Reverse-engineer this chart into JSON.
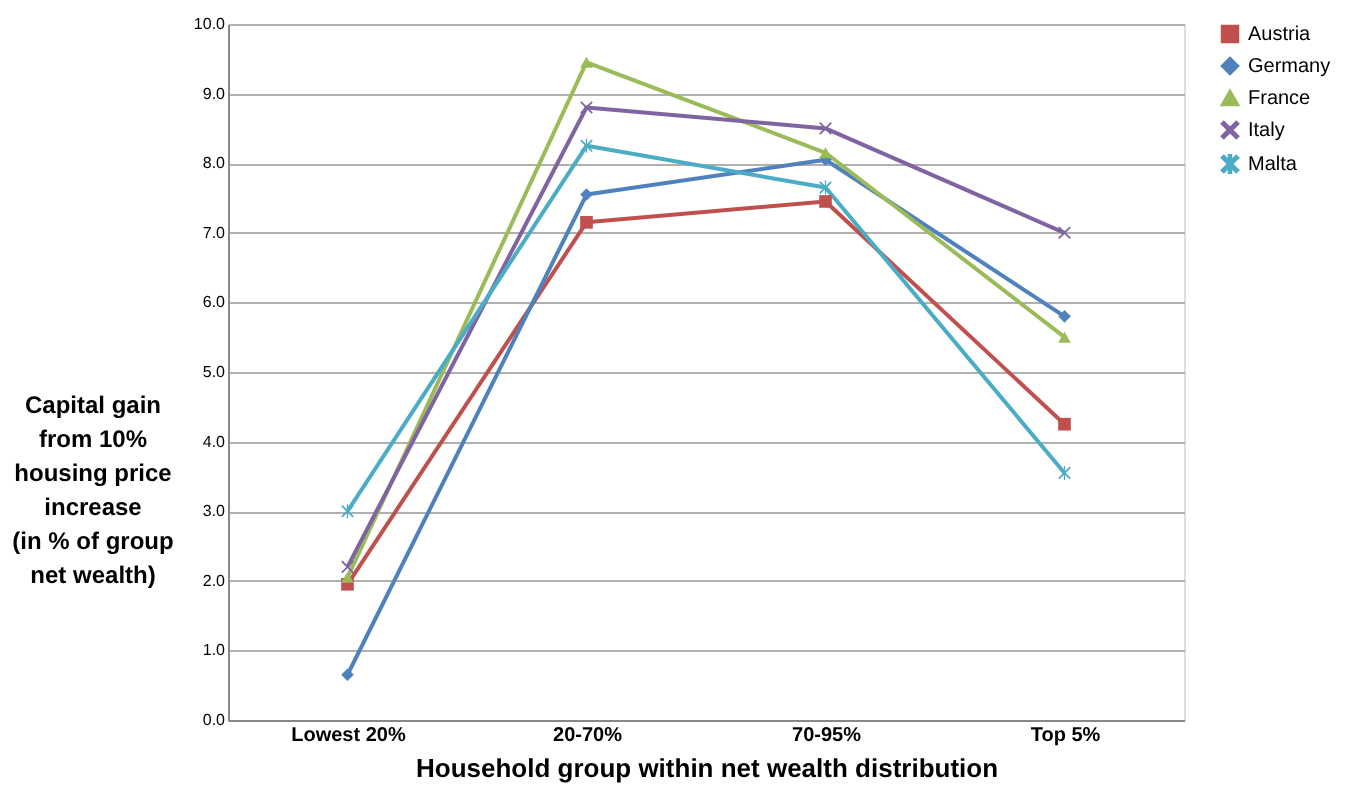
{
  "chart_data": {
    "type": "line",
    "xlabel": "Household group within net wealth distribution",
    "ylabel": "Capital gain\nfrom 10%\nhousing price\nincrease\n(in % of group\nnet wealth)",
    "categories": [
      "Lowest 20%",
      "20-70%",
      "70-95%",
      "Top 5%"
    ],
    "series": [
      {
        "name": "Austria",
        "color": "#c0504d",
        "marker": "square",
        "values": [
          1.95,
          7.15,
          7.45,
          4.25
        ]
      },
      {
        "name": "Germany",
        "color": "#4f81bd",
        "marker": "diamond",
        "values": [
          0.65,
          7.55,
          8.05,
          5.8
        ]
      },
      {
        "name": "France",
        "color": "#9bbb59",
        "marker": "triangle",
        "values": [
          2.05,
          9.45,
          8.15,
          5.5
        ]
      },
      {
        "name": "Italy",
        "color": "#8064a2",
        "marker": "cross",
        "values": [
          2.2,
          8.8,
          8.5,
          7.0
        ]
      },
      {
        "name": "Malta",
        "color": "#4bacc6",
        "marker": "star",
        "values": [
          3.0,
          8.25,
          7.65,
          3.55
        ]
      }
    ],
    "ylim": [
      0,
      10
    ],
    "yticks": [
      {
        "value": 0,
        "label": "0.0"
      },
      {
        "value": 1,
        "label": "1.0"
      },
      {
        "value": 2,
        "label": "2.0"
      },
      {
        "value": 3,
        "label": "3.0"
      },
      {
        "value": 4,
        "label": "4.0"
      },
      {
        "value": 5,
        "label": "5.0"
      },
      {
        "value": 6,
        "label": "6.0"
      },
      {
        "value": 7,
        "label": "7.0"
      },
      {
        "value": 8,
        "label": "8.0"
      },
      {
        "value": 9,
        "label": "9.0"
      },
      {
        "value": 10,
        "label": "10.0"
      }
    ],
    "grid": "y",
    "legend": "right",
    "line_style": "solid"
  }
}
